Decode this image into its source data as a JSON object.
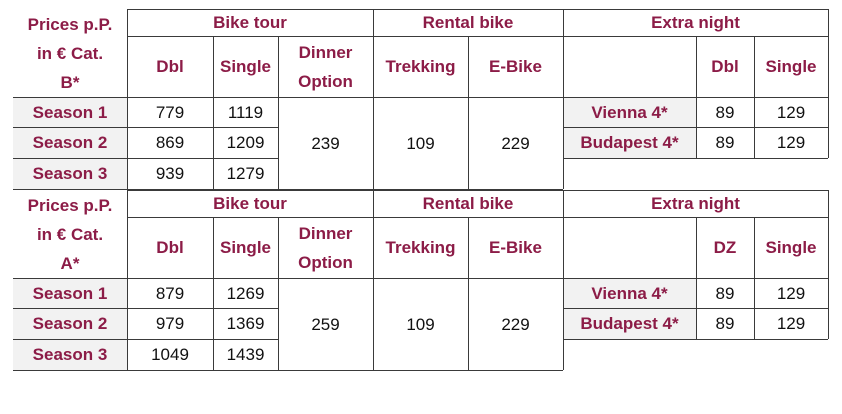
{
  "tables": [
    {
      "groups": {
        "bike_tour": "Bike tour",
        "rental_bike": "Rental bike",
        "extra_night": "Extra night"
      },
      "price_label": "Prices p.P. in € Cat. B*",
      "columns": {
        "dbl": "Dbl",
        "single": "Single",
        "dinner": "Dinner Option",
        "trekking": "Trekking",
        "ebike": "E-Bike",
        "night_dbl": "Dbl",
        "night_single": "Single"
      },
      "seasons": [
        {
          "name": "Season 1",
          "dbl": "779",
          "single": "1119"
        },
        {
          "name": "Season 2",
          "dbl": "869",
          "single": "1209"
        },
        {
          "name": "Season 3",
          "dbl": "939",
          "single": "1279"
        }
      ],
      "dinner": "239",
      "trekking": "109",
      "ebike": "229",
      "nights": [
        {
          "city": "Vienna 4*",
          "dbl": "89",
          "single": "129"
        },
        {
          "city": "Budapest 4*",
          "dbl": "89",
          "single": "129"
        }
      ]
    },
    {
      "groups": {
        "bike_tour": "Bike tour",
        "rental_bike": "Rental bike",
        "extra_night": "Extra night"
      },
      "price_label": "Prices p.P. in € Cat. A*",
      "columns": {
        "dbl": "Dbl",
        "single": "Single",
        "dinner": "Dinner Option",
        "trekking": "Trekking",
        "ebike": "E-Bike",
        "night_dbl": "DZ",
        "night_single": "Single"
      },
      "seasons": [
        {
          "name": "Season 1",
          "dbl": "879",
          "single": "1269"
        },
        {
          "name": "Season 2",
          "dbl": "979",
          "single": "1369"
        },
        {
          "name": "Season 3",
          "dbl": "1049",
          "single": "1439"
        }
      ],
      "dinner": "259",
      "trekking": "109",
      "ebike": "229",
      "nights": [
        {
          "city": "Vienna 4*",
          "dbl": "89",
          "single": "129"
        },
        {
          "city": "Budapest 4*",
          "dbl": "89",
          "single": "129"
        }
      ]
    }
  ],
  "colors": {
    "header_text": "#8c1c47",
    "row_shading": "#f2f2f2",
    "border": "#3a3a3a"
  }
}
